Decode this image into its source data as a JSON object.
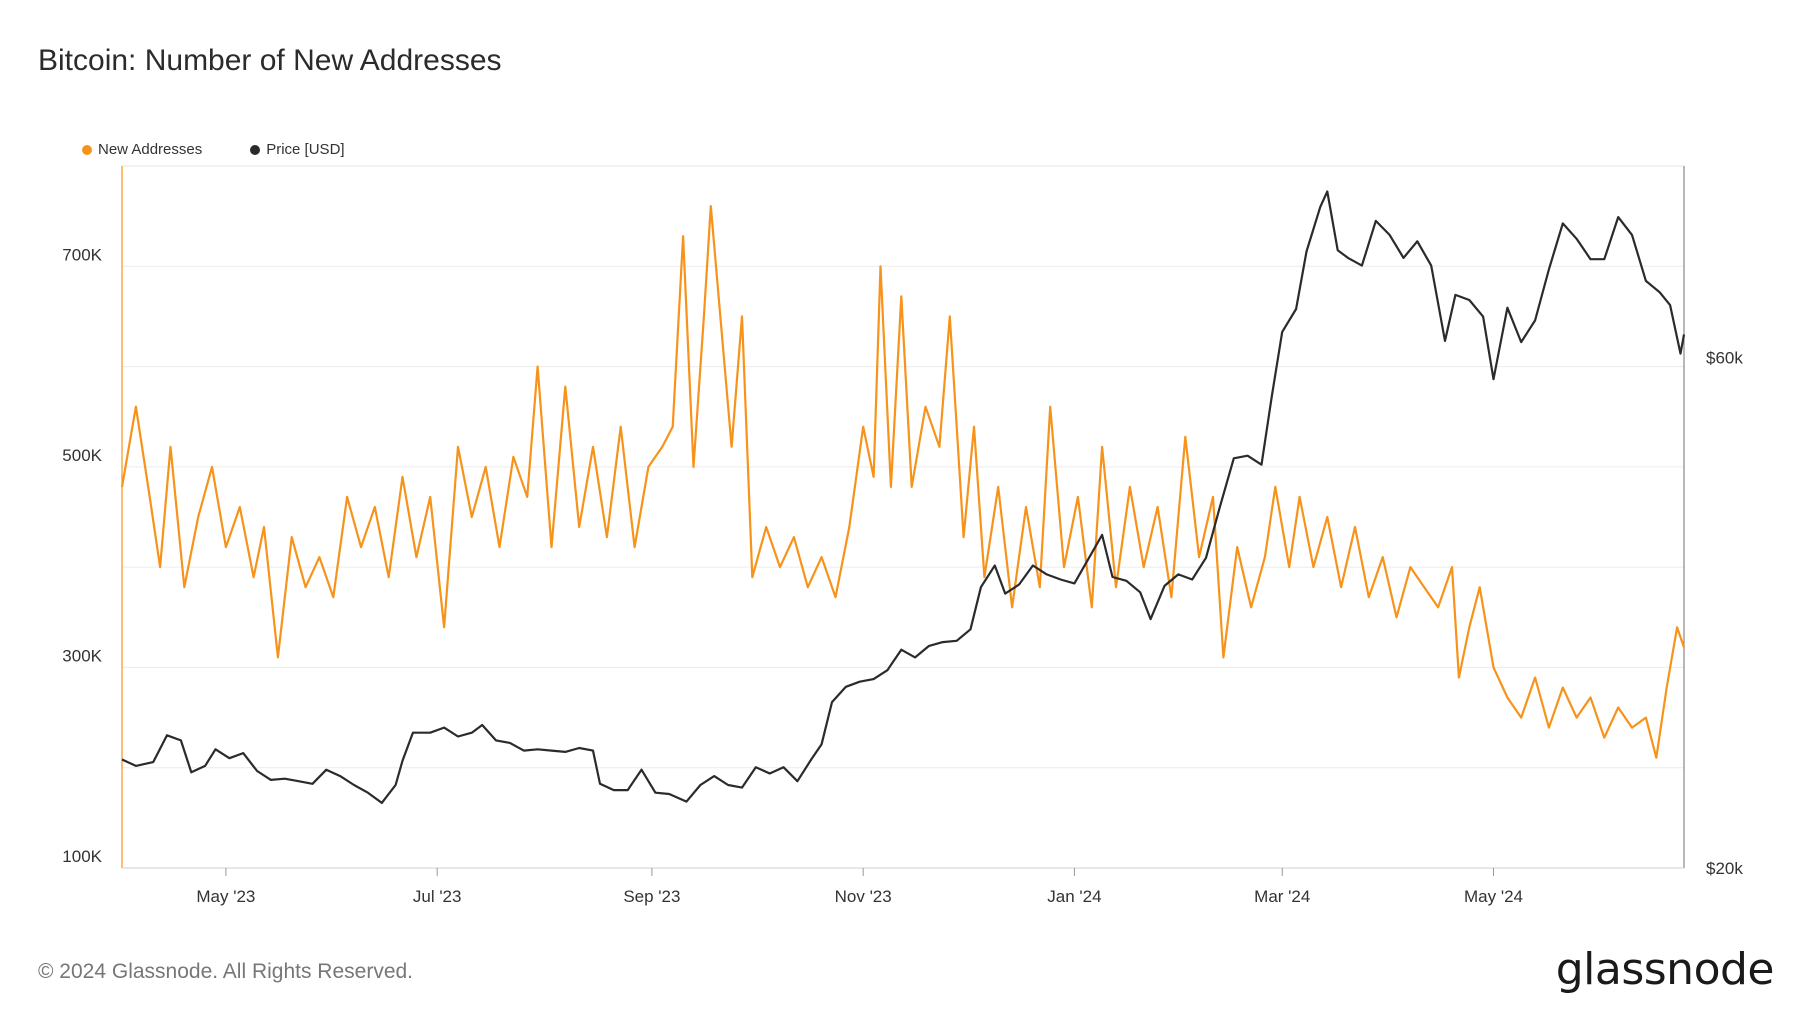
{
  "title": "Bitcoin: Number of New Addresses",
  "footer": "© 2024 Glassnode. All Rights Reserved.",
  "brand": "glassnode",
  "colors": {
    "new_addresses": "#f7931a",
    "price": "#2b2b2b",
    "grid": "#ececec",
    "axis": "#f7931a"
  },
  "chart_data": {
    "type": "line",
    "x_start": "2023-04-01",
    "x_end": "2024-06-25",
    "xlabel": "",
    "ylabel": "",
    "grid": true,
    "legend_position": "top-left",
    "x_ticks": [
      {
        "date": "2023-05-01",
        "label": "May '23"
      },
      {
        "date": "2023-07-01",
        "label": "Jul '23"
      },
      {
        "date": "2023-09-01",
        "label": "Sep '23"
      },
      {
        "date": "2023-11-01",
        "label": "Nov '23"
      },
      {
        "date": "2024-01-01",
        "label": "Jan '24"
      },
      {
        "date": "2024-03-01",
        "label": "Mar '24"
      },
      {
        "date": "2024-05-01",
        "label": "May '24"
      }
    ],
    "y_left": {
      "min": 100000,
      "max": 800000,
      "ticks": [
        {
          "value": 100000,
          "label": "100K"
        },
        {
          "value": 300000,
          "label": "300K"
        },
        {
          "value": 500000,
          "label": "500K"
        },
        {
          "value": 700000,
          "label": "700K"
        }
      ]
    },
    "y_right": {
      "min": 20000,
      "max": 75000,
      "scale": "linear",
      "ticks": [
        {
          "value": 20000,
          "label": "$20k"
        },
        {
          "value": 60000,
          "label": "$60k"
        }
      ]
    },
    "series": [
      {
        "name": "New Addresses",
        "axis": "left",
        "color": "#f7931a",
        "points": [
          [
            "2023-04-01",
            480000
          ],
          [
            "2023-04-05",
            560000
          ],
          [
            "2023-04-09",
            470000
          ],
          [
            "2023-04-12",
            400000
          ],
          [
            "2023-04-15",
            520000
          ],
          [
            "2023-04-19",
            380000
          ],
          [
            "2023-04-23",
            450000
          ],
          [
            "2023-04-27",
            500000
          ],
          [
            "2023-05-01",
            420000
          ],
          [
            "2023-05-05",
            460000
          ],
          [
            "2023-05-09",
            390000
          ],
          [
            "2023-05-12",
            440000
          ],
          [
            "2023-05-16",
            310000
          ],
          [
            "2023-05-20",
            430000
          ],
          [
            "2023-05-24",
            380000
          ],
          [
            "2023-05-28",
            410000
          ],
          [
            "2023-06-01",
            370000
          ],
          [
            "2023-06-05",
            470000
          ],
          [
            "2023-06-09",
            420000
          ],
          [
            "2023-06-13",
            460000
          ],
          [
            "2023-06-17",
            390000
          ],
          [
            "2023-06-21",
            490000
          ],
          [
            "2023-06-25",
            410000
          ],
          [
            "2023-06-29",
            470000
          ],
          [
            "2023-07-03",
            340000
          ],
          [
            "2023-07-07",
            520000
          ],
          [
            "2023-07-11",
            450000
          ],
          [
            "2023-07-15",
            500000
          ],
          [
            "2023-07-19",
            420000
          ],
          [
            "2023-07-23",
            510000
          ],
          [
            "2023-07-27",
            470000
          ],
          [
            "2023-07-30",
            600000
          ],
          [
            "2023-08-03",
            420000
          ],
          [
            "2023-08-07",
            580000
          ],
          [
            "2023-08-11",
            440000
          ],
          [
            "2023-08-15",
            520000
          ],
          [
            "2023-08-19",
            430000
          ],
          [
            "2023-08-23",
            540000
          ],
          [
            "2023-08-27",
            420000
          ],
          [
            "2023-08-31",
            500000
          ],
          [
            "2023-09-04",
            520000
          ],
          [
            "2023-09-07",
            540000
          ],
          [
            "2023-09-10",
            730000
          ],
          [
            "2023-09-13",
            500000
          ],
          [
            "2023-09-16",
            650000
          ],
          [
            "2023-09-18",
            760000
          ],
          [
            "2023-09-21",
            640000
          ],
          [
            "2023-09-24",
            520000
          ],
          [
            "2023-09-27",
            650000
          ],
          [
            "2023-09-30",
            390000
          ],
          [
            "2023-10-04",
            440000
          ],
          [
            "2023-10-08",
            400000
          ],
          [
            "2023-10-12",
            430000
          ],
          [
            "2023-10-16",
            380000
          ],
          [
            "2023-10-20",
            410000
          ],
          [
            "2023-10-24",
            370000
          ],
          [
            "2023-10-28",
            440000
          ],
          [
            "2023-11-01",
            540000
          ],
          [
            "2023-11-04",
            490000
          ],
          [
            "2023-11-06",
            700000
          ],
          [
            "2023-11-09",
            480000
          ],
          [
            "2023-11-12",
            670000
          ],
          [
            "2023-11-15",
            480000
          ],
          [
            "2023-11-19",
            560000
          ],
          [
            "2023-11-23",
            520000
          ],
          [
            "2023-11-26",
            650000
          ],
          [
            "2023-11-30",
            430000
          ],
          [
            "2023-12-03",
            540000
          ],
          [
            "2023-12-06",
            390000
          ],
          [
            "2023-12-10",
            480000
          ],
          [
            "2023-12-14",
            360000
          ],
          [
            "2023-12-18",
            460000
          ],
          [
            "2023-12-22",
            380000
          ],
          [
            "2023-12-25",
            560000
          ],
          [
            "2023-12-29",
            400000
          ],
          [
            "2024-01-02",
            470000
          ],
          [
            "2024-01-06",
            360000
          ],
          [
            "2024-01-09",
            520000
          ],
          [
            "2024-01-13",
            380000
          ],
          [
            "2024-01-17",
            480000
          ],
          [
            "2024-01-21",
            400000
          ],
          [
            "2024-01-25",
            460000
          ],
          [
            "2024-01-29",
            370000
          ],
          [
            "2024-02-02",
            530000
          ],
          [
            "2024-02-06",
            410000
          ],
          [
            "2024-02-10",
            470000
          ],
          [
            "2024-02-13",
            310000
          ],
          [
            "2024-02-17",
            420000
          ],
          [
            "2024-02-21",
            360000
          ],
          [
            "2024-02-25",
            410000
          ],
          [
            "2024-02-28",
            480000
          ],
          [
            "2024-03-03",
            400000
          ],
          [
            "2024-03-06",
            470000
          ],
          [
            "2024-03-10",
            400000
          ],
          [
            "2024-03-14",
            450000
          ],
          [
            "2024-03-18",
            380000
          ],
          [
            "2024-03-22",
            440000
          ],
          [
            "2024-03-26",
            370000
          ],
          [
            "2024-03-30",
            410000
          ],
          [
            "2024-04-03",
            350000
          ],
          [
            "2024-04-07",
            400000
          ],
          [
            "2024-04-11",
            380000
          ],
          [
            "2024-04-15",
            360000
          ],
          [
            "2024-04-19",
            400000
          ],
          [
            "2024-04-21",
            290000
          ],
          [
            "2024-04-24",
            340000
          ],
          [
            "2024-04-27",
            380000
          ],
          [
            "2024-05-01",
            300000
          ],
          [
            "2024-05-05",
            270000
          ],
          [
            "2024-05-09",
            250000
          ],
          [
            "2024-05-13",
            290000
          ],
          [
            "2024-05-17",
            240000
          ],
          [
            "2024-05-21",
            280000
          ],
          [
            "2024-05-25",
            250000
          ],
          [
            "2024-05-29",
            270000
          ],
          [
            "2024-06-02",
            230000
          ],
          [
            "2024-06-06",
            260000
          ],
          [
            "2024-06-10",
            240000
          ],
          [
            "2024-06-14",
            250000
          ],
          [
            "2024-06-17",
            210000
          ],
          [
            "2024-06-20",
            280000
          ],
          [
            "2024-06-23",
            340000
          ],
          [
            "2024-06-25",
            320000
          ]
        ]
      },
      {
        "name": "Price [USD]",
        "axis": "right",
        "color": "#2b2b2b",
        "points": [
          [
            "2023-04-01",
            28500
          ],
          [
            "2023-04-05",
            28000
          ],
          [
            "2023-04-10",
            28300
          ],
          [
            "2023-04-14",
            30400
          ],
          [
            "2023-04-18",
            30000
          ],
          [
            "2023-04-21",
            27500
          ],
          [
            "2023-04-25",
            28000
          ],
          [
            "2023-04-28",
            29300
          ],
          [
            "2023-05-02",
            28600
          ],
          [
            "2023-05-06",
            29000
          ],
          [
            "2023-05-10",
            27600
          ],
          [
            "2023-05-14",
            26900
          ],
          [
            "2023-05-18",
            27000
          ],
          [
            "2023-05-22",
            26800
          ],
          [
            "2023-05-26",
            26600
          ],
          [
            "2023-05-30",
            27700
          ],
          [
            "2023-06-03",
            27200
          ],
          [
            "2023-06-07",
            26500
          ],
          [
            "2023-06-11",
            25900
          ],
          [
            "2023-06-15",
            25100
          ],
          [
            "2023-06-19",
            26500
          ],
          [
            "2023-06-21",
            28400
          ],
          [
            "2023-06-24",
            30600
          ],
          [
            "2023-06-29",
            30600
          ],
          [
            "2023-07-03",
            31000
          ],
          [
            "2023-07-07",
            30300
          ],
          [
            "2023-07-11",
            30600
          ],
          [
            "2023-07-14",
            31200
          ],
          [
            "2023-07-18",
            30000
          ],
          [
            "2023-07-22",
            29800
          ],
          [
            "2023-07-26",
            29200
          ],
          [
            "2023-07-30",
            29300
          ],
          [
            "2023-08-03",
            29200
          ],
          [
            "2023-08-07",
            29100
          ],
          [
            "2023-08-11",
            29400
          ],
          [
            "2023-08-15",
            29200
          ],
          [
            "2023-08-17",
            26600
          ],
          [
            "2023-08-21",
            26100
          ],
          [
            "2023-08-25",
            26100
          ],
          [
            "2023-08-29",
            27700
          ],
          [
            "2023-09-02",
            25900
          ],
          [
            "2023-09-06",
            25800
          ],
          [
            "2023-09-11",
            25200
          ],
          [
            "2023-09-15",
            26500
          ],
          [
            "2023-09-19",
            27200
          ],
          [
            "2023-09-23",
            26500
          ],
          [
            "2023-09-27",
            26300
          ],
          [
            "2023-10-01",
            27900
          ],
          [
            "2023-10-05",
            27400
          ],
          [
            "2023-10-09",
            27900
          ],
          [
            "2023-10-13",
            26800
          ],
          [
            "2023-10-17",
            28500
          ],
          [
            "2023-10-20",
            29700
          ],
          [
            "2023-10-23",
            33000
          ],
          [
            "2023-10-27",
            34200
          ],
          [
            "2023-10-31",
            34600
          ],
          [
            "2023-11-04",
            34800
          ],
          [
            "2023-11-08",
            35500
          ],
          [
            "2023-11-12",
            37100
          ],
          [
            "2023-11-16",
            36500
          ],
          [
            "2023-11-20",
            37400
          ],
          [
            "2023-11-24",
            37700
          ],
          [
            "2023-11-28",
            37800
          ],
          [
            "2023-12-02",
            38700
          ],
          [
            "2023-12-05",
            42000
          ],
          [
            "2023-12-09",
            43700
          ],
          [
            "2023-12-12",
            41500
          ],
          [
            "2023-12-16",
            42200
          ],
          [
            "2023-12-20",
            43700
          ],
          [
            "2023-12-24",
            43000
          ],
          [
            "2023-12-28",
            42600
          ],
          [
            "2024-01-01",
            42300
          ],
          [
            "2024-01-05",
            44200
          ],
          [
            "2024-01-09",
            46100
          ],
          [
            "2024-01-12",
            42800
          ],
          [
            "2024-01-16",
            42500
          ],
          [
            "2024-01-20",
            41600
          ],
          [
            "2024-01-23",
            39500
          ],
          [
            "2024-01-27",
            42100
          ],
          [
            "2024-01-31",
            43000
          ],
          [
            "2024-02-04",
            42600
          ],
          [
            "2024-02-08",
            44300
          ],
          [
            "2024-02-12",
            48300
          ],
          [
            "2024-02-16",
            52100
          ],
          [
            "2024-02-20",
            52300
          ],
          [
            "2024-02-24",
            51600
          ],
          [
            "2024-02-27",
            57000
          ],
          [
            "2024-03-01",
            62000
          ],
          [
            "2024-03-05",
            63800
          ],
          [
            "2024-03-08",
            68300
          ],
          [
            "2024-03-12",
            71800
          ],
          [
            "2024-03-14",
            73000
          ],
          [
            "2024-03-17",
            68400
          ],
          [
            "2024-03-20",
            67800
          ],
          [
            "2024-03-24",
            67200
          ],
          [
            "2024-03-28",
            70700
          ],
          [
            "2024-04-01",
            69600
          ],
          [
            "2024-04-05",
            67800
          ],
          [
            "2024-04-09",
            69100
          ],
          [
            "2024-04-13",
            67200
          ],
          [
            "2024-04-17",
            61300
          ],
          [
            "2024-04-20",
            64900
          ],
          [
            "2024-04-24",
            64500
          ],
          [
            "2024-04-28",
            63200
          ],
          [
            "2024-05-01",
            58300
          ],
          [
            "2024-05-05",
            63900
          ],
          [
            "2024-05-09",
            61200
          ],
          [
            "2024-05-13",
            62900
          ],
          [
            "2024-05-17",
            66900
          ],
          [
            "2024-05-21",
            70500
          ],
          [
            "2024-05-25",
            69300
          ],
          [
            "2024-05-29",
            67700
          ],
          [
            "2024-06-02",
            67700
          ],
          [
            "2024-06-06",
            71000
          ],
          [
            "2024-06-10",
            69600
          ],
          [
            "2024-06-14",
            66000
          ],
          [
            "2024-06-18",
            65100
          ],
          [
            "2024-06-21",
            64100
          ],
          [
            "2024-06-24",
            60300
          ],
          [
            "2024-06-25",
            61800
          ]
        ]
      }
    ]
  }
}
